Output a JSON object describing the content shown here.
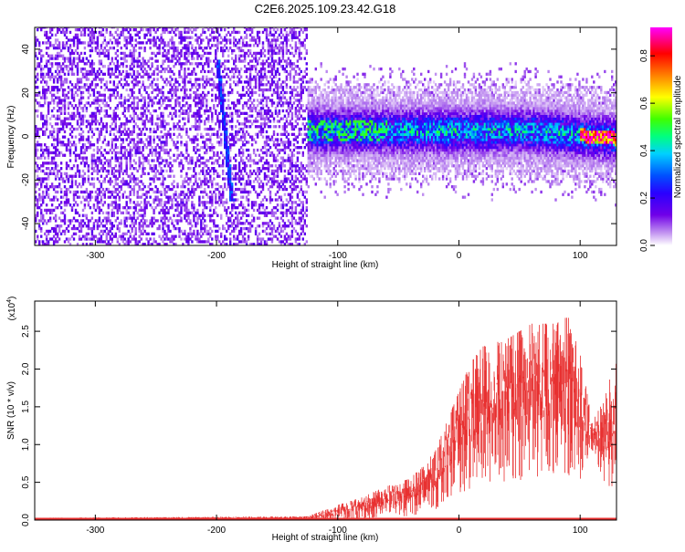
{
  "title": "C2E6.2025.109.23.42.G18",
  "colors": {
    "snr_trace": "#e83030",
    "colormap": [
      "#ffffff",
      "#b080f0",
      "#7000e8",
      "#2a00ff",
      "#0050ff",
      "#00d0ff",
      "#00ff80",
      "#40ff00",
      "#ffff00",
      "#ff8000",
      "#ff0000",
      "#ff00ff"
    ]
  },
  "chart_data": [
    {
      "type": "heatmap",
      "xlabel": "Height of straight line (km)",
      "ylabel": "Frequency (Hz)",
      "xlim": [
        -350,
        130
      ],
      "ylim": [
        -50,
        50
      ],
      "x_ticks": [
        -300,
        -200,
        -100,
        0,
        100
      ],
      "y_ticks": [
        -40,
        -20,
        0,
        20,
        40
      ],
      "colorbar": {
        "label": "Normalized spectral amplitude",
        "range": [
          0.0,
          0.92
        ],
        "ticks": [
          "0.0",
          "0.2",
          "0.4",
          "0.6",
          "0.8"
        ]
      },
      "regions": [
        {
          "x_range": [
            -350,
            -125
          ],
          "y_range": [
            -50,
            50
          ],
          "description_level": 0.15,
          "pattern": "uniform noise"
        },
        {
          "x_range": [
            -125,
            130
          ],
          "y_center": 2,
          "y_halfwidth": 20,
          "peak_level": 0.5
        },
        {
          "x_range": [
            100,
            130
          ],
          "y_center": -1,
          "peak_level": 0.9
        }
      ],
      "streak": {
        "x": [
          -200,
          -188
        ],
        "y": [
          35,
          -30
        ],
        "level": 0.3
      }
    },
    {
      "type": "area",
      "xlabel": "Height of straight line (km)",
      "ylabel": "SNR (10 * v/v)",
      "y_multiplier_label": "(x10",
      "y_multiplier_exp": "4",
      "y_multiplier_close": ")",
      "xlim": [
        -350,
        130
      ],
      "ylim": [
        0,
        2.9
      ],
      "x_ticks": [
        -300,
        -200,
        -100,
        0,
        100
      ],
      "y_ticks": [
        "0.0",
        "0.5",
        "1.0",
        "1.5",
        "2.0",
        "2.5"
      ],
      "envelope": {
        "x": [
          -350,
          -125,
          -100,
          -80,
          -60,
          -40,
          -20,
          -10,
          0,
          10,
          20,
          40,
          60,
          80,
          90,
          100,
          110,
          120,
          130
        ],
        "upper": [
          0.03,
          0.05,
          0.2,
          0.3,
          0.45,
          0.55,
          0.9,
          1.3,
          1.7,
          2.1,
          2.3,
          2.4,
          2.6,
          2.6,
          2.7,
          2.2,
          1.3,
          1.6,
          2.2
        ],
        "lower": [
          0.0,
          0.0,
          0.0,
          0.0,
          0.05,
          0.05,
          0.1,
          0.3,
          0.35,
          0.4,
          0.45,
          0.5,
          0.55,
          0.6,
          0.6,
          0.5,
          0.9,
          0.5,
          0.3
        ]
      }
    }
  ]
}
